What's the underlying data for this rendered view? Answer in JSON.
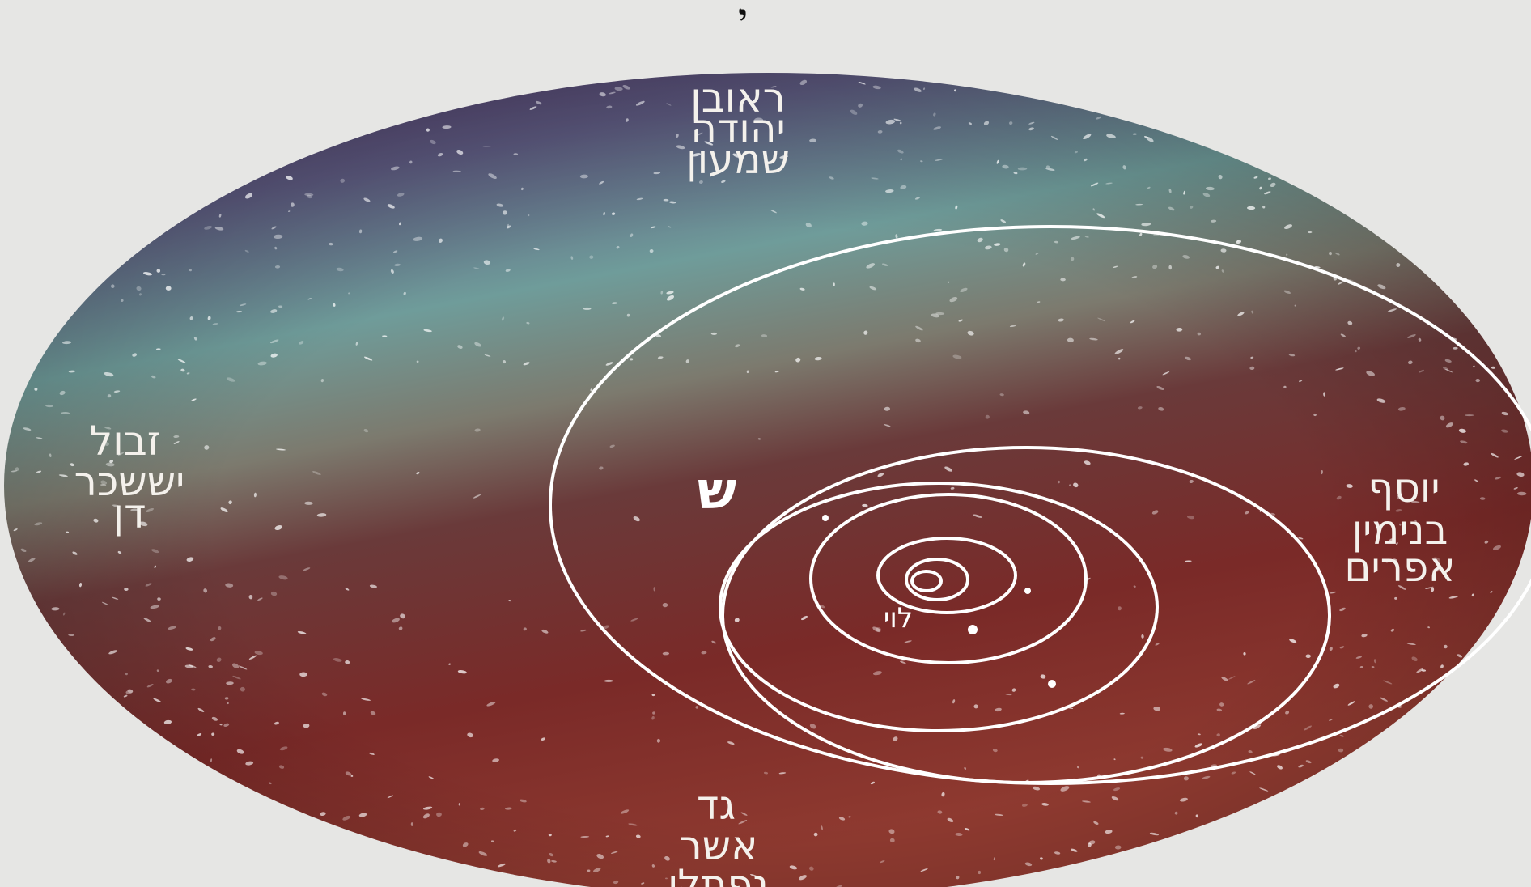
{
  "top_mark": "י",
  "tribe_groups": {
    "top": [
      "ראובן",
      "יהודה",
      "שמעון"
    ],
    "left": [
      "זבול",
      "יששכר",
      "דן"
    ],
    "right": [
      "יוסף",
      "בנימין",
      "אפרים"
    ],
    "bottom": [
      "גד",
      "אשר",
      "נפתלי"
    ]
  },
  "letter_shin": "ש",
  "center_label": "לוי",
  "colors": {
    "background": "#e6e6e4",
    "disc_purple": "#4b2d5e",
    "disc_teal": "#6f9c9a",
    "disc_brown": "#6a2a2a",
    "disc_red": "#8a2a28",
    "lines": "#ffffff"
  }
}
